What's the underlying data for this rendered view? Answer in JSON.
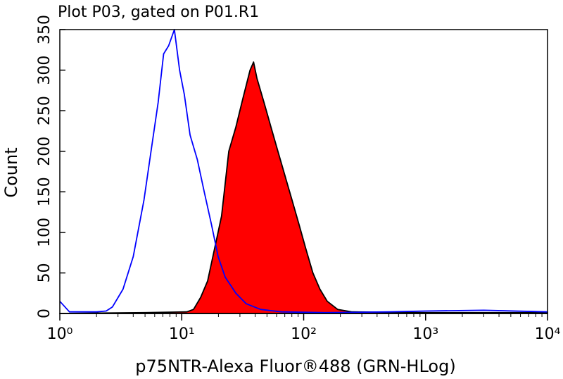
{
  "chart_data": {
    "type": "histogram-overlay",
    "title": "Plot P03, gated on P01.R1",
    "x_label": "p75NTR-Alexa Fluor®488 (GRN-HLog)",
    "y_label": "Count",
    "x_scale": "log",
    "xlim": [
      1,
      10000
    ],
    "ylim": [
      0,
      350
    ],
    "xticks": [
      {
        "value": 1,
        "label": "10⁰"
      },
      {
        "value": 10,
        "label": "10¹"
      },
      {
        "value": 100,
        "label": "10²"
      },
      {
        "value": 1000,
        "label": "10³"
      },
      {
        "value": 10000,
        "label": "10⁴"
      }
    ],
    "yticks": [
      0,
      50,
      100,
      150,
      200,
      250,
      300,
      350
    ],
    "series": [
      {
        "color": "#ff0000",
        "stroke": "#000000",
        "x": [
          1,
          5,
          11.0,
          12.5,
          14.3,
          16.3,
          18.6,
          21.2,
          24.3,
          27.8,
          31.7,
          36.3,
          38.8,
          41.4,
          47.3,
          53.9,
          61.5,
          70.2,
          80.2,
          91.5,
          104,
          119,
          136,
          156,
          190,
          250,
          940,
          10000
        ],
        "values": [
          0,
          1,
          2,
          5,
          20,
          40,
          80,
          120,
          200,
          230,
          265,
          300,
          310,
          290,
          260,
          230,
          200,
          170,
          140,
          110,
          80,
          50,
          30,
          15,
          5,
          2,
          1,
          1
        ]
      },
      {
        "color": "none",
        "stroke": "#0000ff",
        "x": [
          1.0,
          1.2,
          1.5,
          2.0,
          2.4,
          2.7,
          3.3,
          4.0,
          4.9,
          5.6,
          6.4,
          7.1,
          7.8,
          8.7,
          9.6,
          10.5,
          11.7,
          13.4,
          15.3,
          17.5,
          19.9,
          22.7,
          27.8,
          33.8,
          44.3,
          65.7,
          150,
          500,
          1000,
          3000,
          10000
        ],
        "values": [
          15,
          2,
          2,
          2,
          3,
          8,
          30,
          70,
          140,
          200,
          260,
          320,
          330,
          350,
          300,
          270,
          220,
          190,
          150,
          110,
          70,
          45,
          25,
          12,
          5,
          2,
          1,
          2,
          3,
          4,
          2
        ]
      }
    ]
  }
}
